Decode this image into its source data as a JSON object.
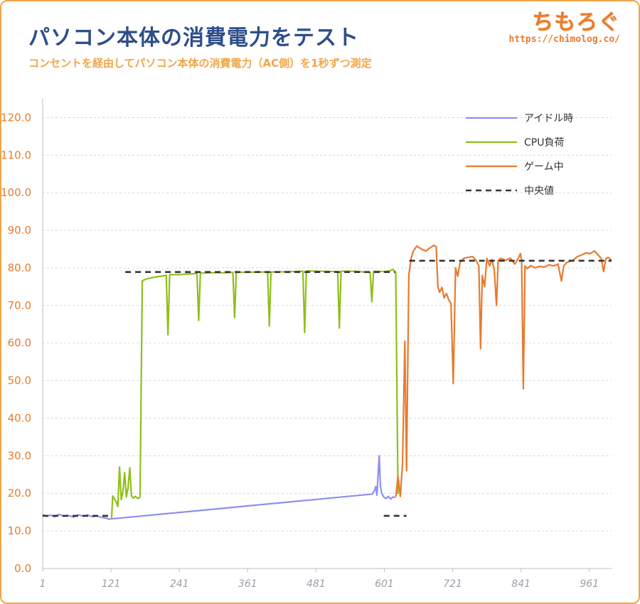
{
  "header": {
    "title": "パソコン本体の消費電力をテスト",
    "subtitle": "コンセントを経由してパソコン本体の消費電力（AC側）を1秒ずつ測定",
    "brand_name": "ちもろぐ",
    "brand_url": "https://chimolog.co/"
  },
  "chart_data": {
    "type": "line",
    "title": "パソコン本体の消費電力をテスト",
    "subtitle": "コンセントを経由してパソコン本体の消費電力（AC側）を1秒ずつ測定",
    "xlim": [
      1,
      1000
    ],
    "ylim": [
      0,
      125
    ],
    "yticks": [
      0,
      10,
      20,
      30,
      40,
      50,
      60,
      70,
      80,
      90,
      100,
      110,
      120
    ],
    "ytick_labels": [
      "0.0",
      "10.0",
      "20.0",
      "30.0",
      "40.0",
      "50.0",
      "60.0",
      "70.0",
      "80.0",
      "90.0",
      "100.0",
      "110.0",
      "120.0"
    ],
    "xticks": [
      1,
      121,
      241,
      361,
      481,
      601,
      721,
      841,
      961
    ],
    "xtick_labels": [
      "1",
      "121",
      "241",
      "361",
      "481",
      "601",
      "721",
      "841",
      "961"
    ],
    "grid": true,
    "legend_position": "top-right",
    "legend": [
      {
        "label": "アイドル時",
        "color": "#8f8ff0",
        "style": "solid"
      },
      {
        "label": "CPU負荷",
        "color": "#8fbf1a",
        "style": "solid"
      },
      {
        "label": "ゲーム中",
        "color": "#e87b2e",
        "style": "solid"
      },
      {
        "label": "中央値",
        "color": "#333333",
        "style": "dashed"
      }
    ],
    "series": [
      {
        "name": "アイドル時",
        "color": "#8f8ff0",
        "points": [
          [
            1,
            14.3
          ],
          [
            8,
            13.9
          ],
          [
            15,
            14.2
          ],
          [
            22,
            13.8
          ],
          [
            30,
            14.4
          ],
          [
            38,
            13.9
          ],
          [
            46,
            14.1
          ],
          [
            55,
            13.7
          ],
          [
            64,
            14.3
          ],
          [
            72,
            13.9
          ],
          [
            80,
            14.2
          ],
          [
            88,
            13.8
          ],
          [
            96,
            14.0
          ],
          [
            104,
            13.6
          ],
          [
            112,
            13.4
          ],
          [
            118,
            13.1
          ],
          [
            122,
            13.2
          ],
          [
            580,
            19.8
          ],
          [
            583,
            20.6
          ],
          [
            586,
            21.8
          ],
          [
            588,
            19.5
          ],
          [
            590,
            25.0
          ],
          [
            592,
            30.0
          ],
          [
            594,
            22.0
          ],
          [
            596,
            20.2
          ],
          [
            600,
            19.0
          ],
          [
            604,
            18.6
          ],
          [
            608,
            19.2
          ],
          [
            612,
            18.5
          ],
          [
            616,
            19.0
          ],
          [
            620,
            18.9
          ]
        ]
      },
      {
        "name": "CPU負荷",
        "color": "#8fbf1a",
        "points": [
          [
            122,
            13.2
          ],
          [
            124,
            19.3
          ],
          [
            127,
            18.5
          ],
          [
            130,
            17.8
          ],
          [
            133,
            16.5
          ],
          [
            136,
            27.0
          ],
          [
            139,
            18.3
          ],
          [
            142,
            20.5
          ],
          [
            145,
            25.5
          ],
          [
            148,
            19.0
          ],
          [
            151,
            21.5
          ],
          [
            154,
            26.8
          ],
          [
            157,
            19.3
          ],
          [
            160,
            18.7
          ],
          [
            164,
            19.2
          ],
          [
            168,
            18.6
          ],
          [
            172,
            19.0
          ],
          [
            176,
            76.5
          ],
          [
            182,
            77.0
          ],
          [
            190,
            77.3
          ],
          [
            200,
            77.6
          ],
          [
            210,
            77.8
          ],
          [
            218,
            78.0
          ],
          [
            221,
            62.2
          ],
          [
            224,
            78.2
          ],
          [
            240,
            78.2
          ],
          [
            260,
            78.4
          ],
          [
            272,
            78.5
          ],
          [
            275,
            66.0
          ],
          [
            278,
            78.6
          ],
          [
            300,
            78.7
          ],
          [
            320,
            78.7
          ],
          [
            335,
            78.8
          ],
          [
            338,
            66.8
          ],
          [
            341,
            78.8
          ],
          [
            380,
            78.9
          ],
          [
            396,
            78.9
          ],
          [
            399,
            64.5
          ],
          [
            402,
            78.9
          ],
          [
            440,
            79.0
          ],
          [
            458,
            79.1
          ],
          [
            461,
            62.8
          ],
          [
            464,
            79.2
          ],
          [
            485,
            79.1
          ],
          [
            519,
            79.0
          ],
          [
            522,
            64.0
          ],
          [
            525,
            79.1
          ],
          [
            548,
            79.1
          ],
          [
            576,
            78.8
          ],
          [
            579,
            71.0
          ],
          [
            582,
            79.1
          ],
          [
            600,
            79.0
          ],
          [
            610,
            79.2
          ],
          [
            616,
            79.6
          ],
          [
            621,
            78.8
          ],
          [
            625,
            19.8
          ]
        ]
      },
      {
        "name": "ゲーム中",
        "color": "#e87b2e",
        "points": [
          [
            621,
            19.0
          ],
          [
            625,
            24.5
          ],
          [
            629,
            19.2
          ],
          [
            633,
            28.0
          ],
          [
            637,
            60.5
          ],
          [
            640,
            26.0
          ],
          [
            644,
            78.0
          ],
          [
            648,
            82.5
          ],
          [
            652,
            84.5
          ],
          [
            658,
            85.8
          ],
          [
            666,
            85.0
          ],
          [
            674,
            84.5
          ],
          [
            680,
            85.2
          ],
          [
            688,
            86.0
          ],
          [
            692,
            85.6
          ],
          [
            695,
            75.0
          ],
          [
            698,
            73.5
          ],
          [
            702,
            74.8
          ],
          [
            706,
            72.0
          ],
          [
            710,
            73.2
          ],
          [
            714,
            71.5
          ],
          [
            718,
            70.5
          ],
          [
            722,
            49.2
          ],
          [
            726,
            80.0
          ],
          [
            730,
            77.8
          ],
          [
            734,
            81.5
          ],
          [
            740,
            82.5
          ],
          [
            748,
            82.8
          ],
          [
            756,
            83.0
          ],
          [
            762,
            82.0
          ],
          [
            767,
            80.5
          ],
          [
            770,
            58.5
          ],
          [
            773,
            78.0
          ],
          [
            777,
            75.0
          ],
          [
            781,
            82.5
          ],
          [
            786,
            80.5
          ],
          [
            790,
            82.2
          ],
          [
            794,
            79.5
          ],
          [
            798,
            70.0
          ],
          [
            801,
            82.0
          ],
          [
            806,
            82.5
          ],
          [
            814,
            82.0
          ],
          [
            822,
            82.6
          ],
          [
            830,
            81.0
          ],
          [
            836,
            82.5
          ],
          [
            840,
            83.8
          ],
          [
            842,
            82.0
          ],
          [
            845,
            47.8
          ],
          [
            848,
            80.5
          ],
          [
            852,
            79.8
          ],
          [
            858,
            80.6
          ],
          [
            866,
            80.0
          ],
          [
            874,
            80.4
          ],
          [
            882,
            80.2
          ],
          [
            890,
            80.8
          ],
          [
            898,
            80.5
          ],
          [
            906,
            81.0
          ],
          [
            912,
            76.5
          ],
          [
            916,
            80.5
          ],
          [
            922,
            81.5
          ],
          [
            932,
            82.0
          ],
          [
            940,
            83.0
          ],
          [
            948,
            83.5
          ],
          [
            956,
            84.0
          ],
          [
            962,
            83.8
          ],
          [
            970,
            84.5
          ],
          [
            976,
            83.5
          ],
          [
            982,
            82.5
          ],
          [
            986,
            79.0
          ],
          [
            990,
            82.5
          ],
          [
            994,
            82.8
          ],
          [
            1000,
            82.0
          ]
        ]
      },
      {
        "name": "中央値",
        "color": "#333333",
        "style": "dashed",
        "segments": [
          {
            "x": [
              1,
              122
            ],
            "y": 14.0
          },
          {
            "x": [
              146,
              620
            ],
            "y": 78.9
          },
          {
            "x": [
              600,
              640
            ],
            "y": 14.0
          },
          {
            "x": [
              645,
              1000
            ],
            "y": 81.9
          }
        ]
      }
    ]
  }
}
